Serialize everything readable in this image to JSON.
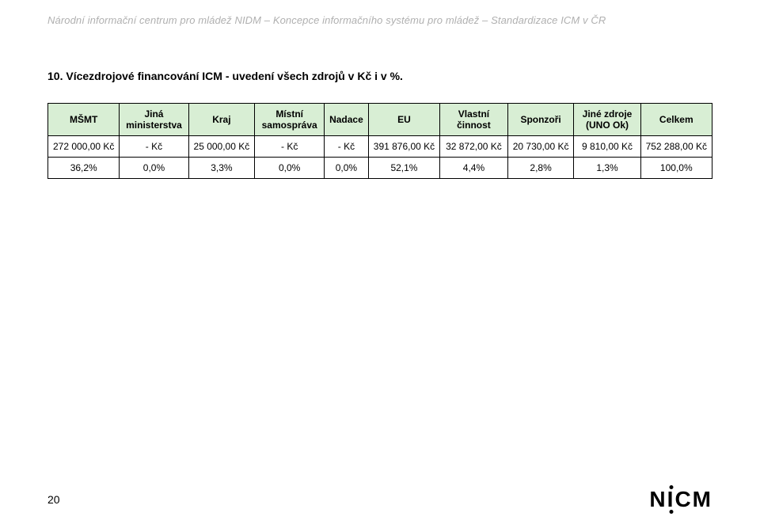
{
  "header": {
    "text": "Národní informační centrum pro mládež NIDM – Koncepce informačního systému pro mládež – Standardizace ICM v ČR"
  },
  "section": {
    "title": "10. Vícezdrojové financování ICM  - uvedení všech zdrojů v Kč i v %."
  },
  "table": {
    "headers": [
      "MŠMT",
      "Jiná ministerstva",
      "Kraj",
      "Místní samospráva",
      "Nadace",
      "EU",
      "Vlastní činnost",
      "Sponzoři",
      "Jiné zdroje (UNO Ok)",
      "Celkem"
    ],
    "header_bg": "#d8eed4",
    "rows": [
      [
        "272 000,00 Kč",
        "-   Kč",
        "25 000,00 Kč",
        "-   Kč",
        "-   Kč",
        "391 876,00 Kč",
        "32 872,00 Kč",
        "20 730,00 Kč",
        "9 810,00 Kč",
        "752 288,00 Kč"
      ],
      [
        "36,2%",
        "0,0%",
        "3,3%",
        "0,0%",
        "0,0%",
        "52,1%",
        "4,4%",
        "2,8%",
        "1,3%",
        "100,0%"
      ]
    ]
  },
  "footer": {
    "page_number": "20",
    "logo_text": "NICM"
  }
}
